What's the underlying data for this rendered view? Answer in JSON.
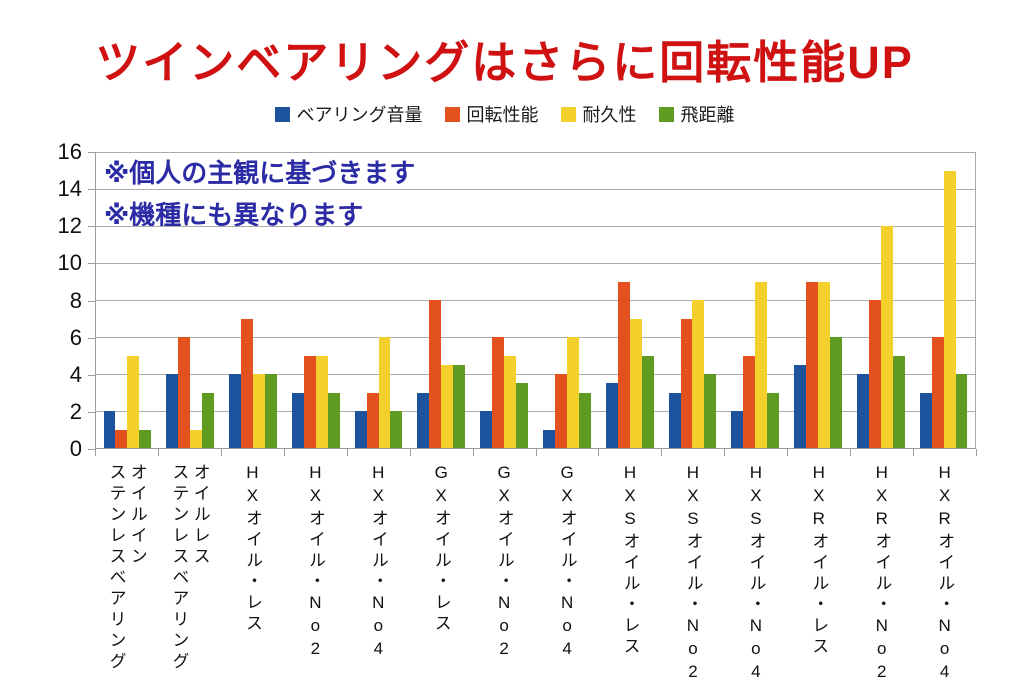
{
  "title": "ツインベアリングはさらに回転性能UP",
  "annotations": [
    "※個人の主観に基づきます",
    "※機種にも異なります"
  ],
  "colors": {
    "title_red": "#cf1112",
    "annotation_blue": "#2b2ba5",
    "gridline_gray": "#ababab",
    "series_blue": "#1c539c",
    "series_orange": "#e3511f",
    "series_yellow": "#f4d02c",
    "series_green": "#5f9a21"
  },
  "chart_data": {
    "type": "bar",
    "title": "ツインベアリングはさらに回転性能UP",
    "categories": [
      "オイルイン\nステンレスベアリング",
      "オイルレス\nステンレスベアリング",
      "HXオイル・レス",
      "HXオイル・No2",
      "HXオイル・No4",
      "GXオイル・レス",
      "GXオイル・No2",
      "GXオイル・No4",
      "HXSオイル・レス",
      "HXSオイル・No2",
      "HXSオイル・No4",
      "HXRオイル・レス",
      "HXRオイル・No2",
      "HXRオイル・No4"
    ],
    "series": [
      {
        "name": "ベアリング音量",
        "color": "#1c539c",
        "values": [
          2,
          4,
          4,
          3,
          2,
          3,
          2,
          1,
          3.5,
          3,
          2,
          4.5,
          4,
          3
        ]
      },
      {
        "name": "回転性能",
        "color": "#e3511f",
        "values": [
          1,
          6,
          7,
          5,
          3,
          8,
          6,
          4,
          9,
          7,
          5,
          9,
          8,
          6
        ]
      },
      {
        "name": "耐久性",
        "color": "#f4d02c",
        "values": [
          5,
          1,
          4,
          5,
          6,
          4.5,
          5,
          6,
          7,
          8,
          9,
          9,
          12,
          15
        ]
      },
      {
        "name": "飛距離",
        "color": "#5f9a21",
        "values": [
          1,
          3,
          4,
          3,
          2,
          4.5,
          3.5,
          3,
          5,
          4,
          3,
          6,
          5,
          4
        ]
      }
    ],
    "ylim": [
      0,
      16
    ],
    "y_ticks": [
      0,
      2,
      4,
      6,
      8,
      10,
      12,
      14,
      16
    ],
    "grid": true,
    "legend_position": "top",
    "xlabel": "",
    "ylabel": ""
  }
}
